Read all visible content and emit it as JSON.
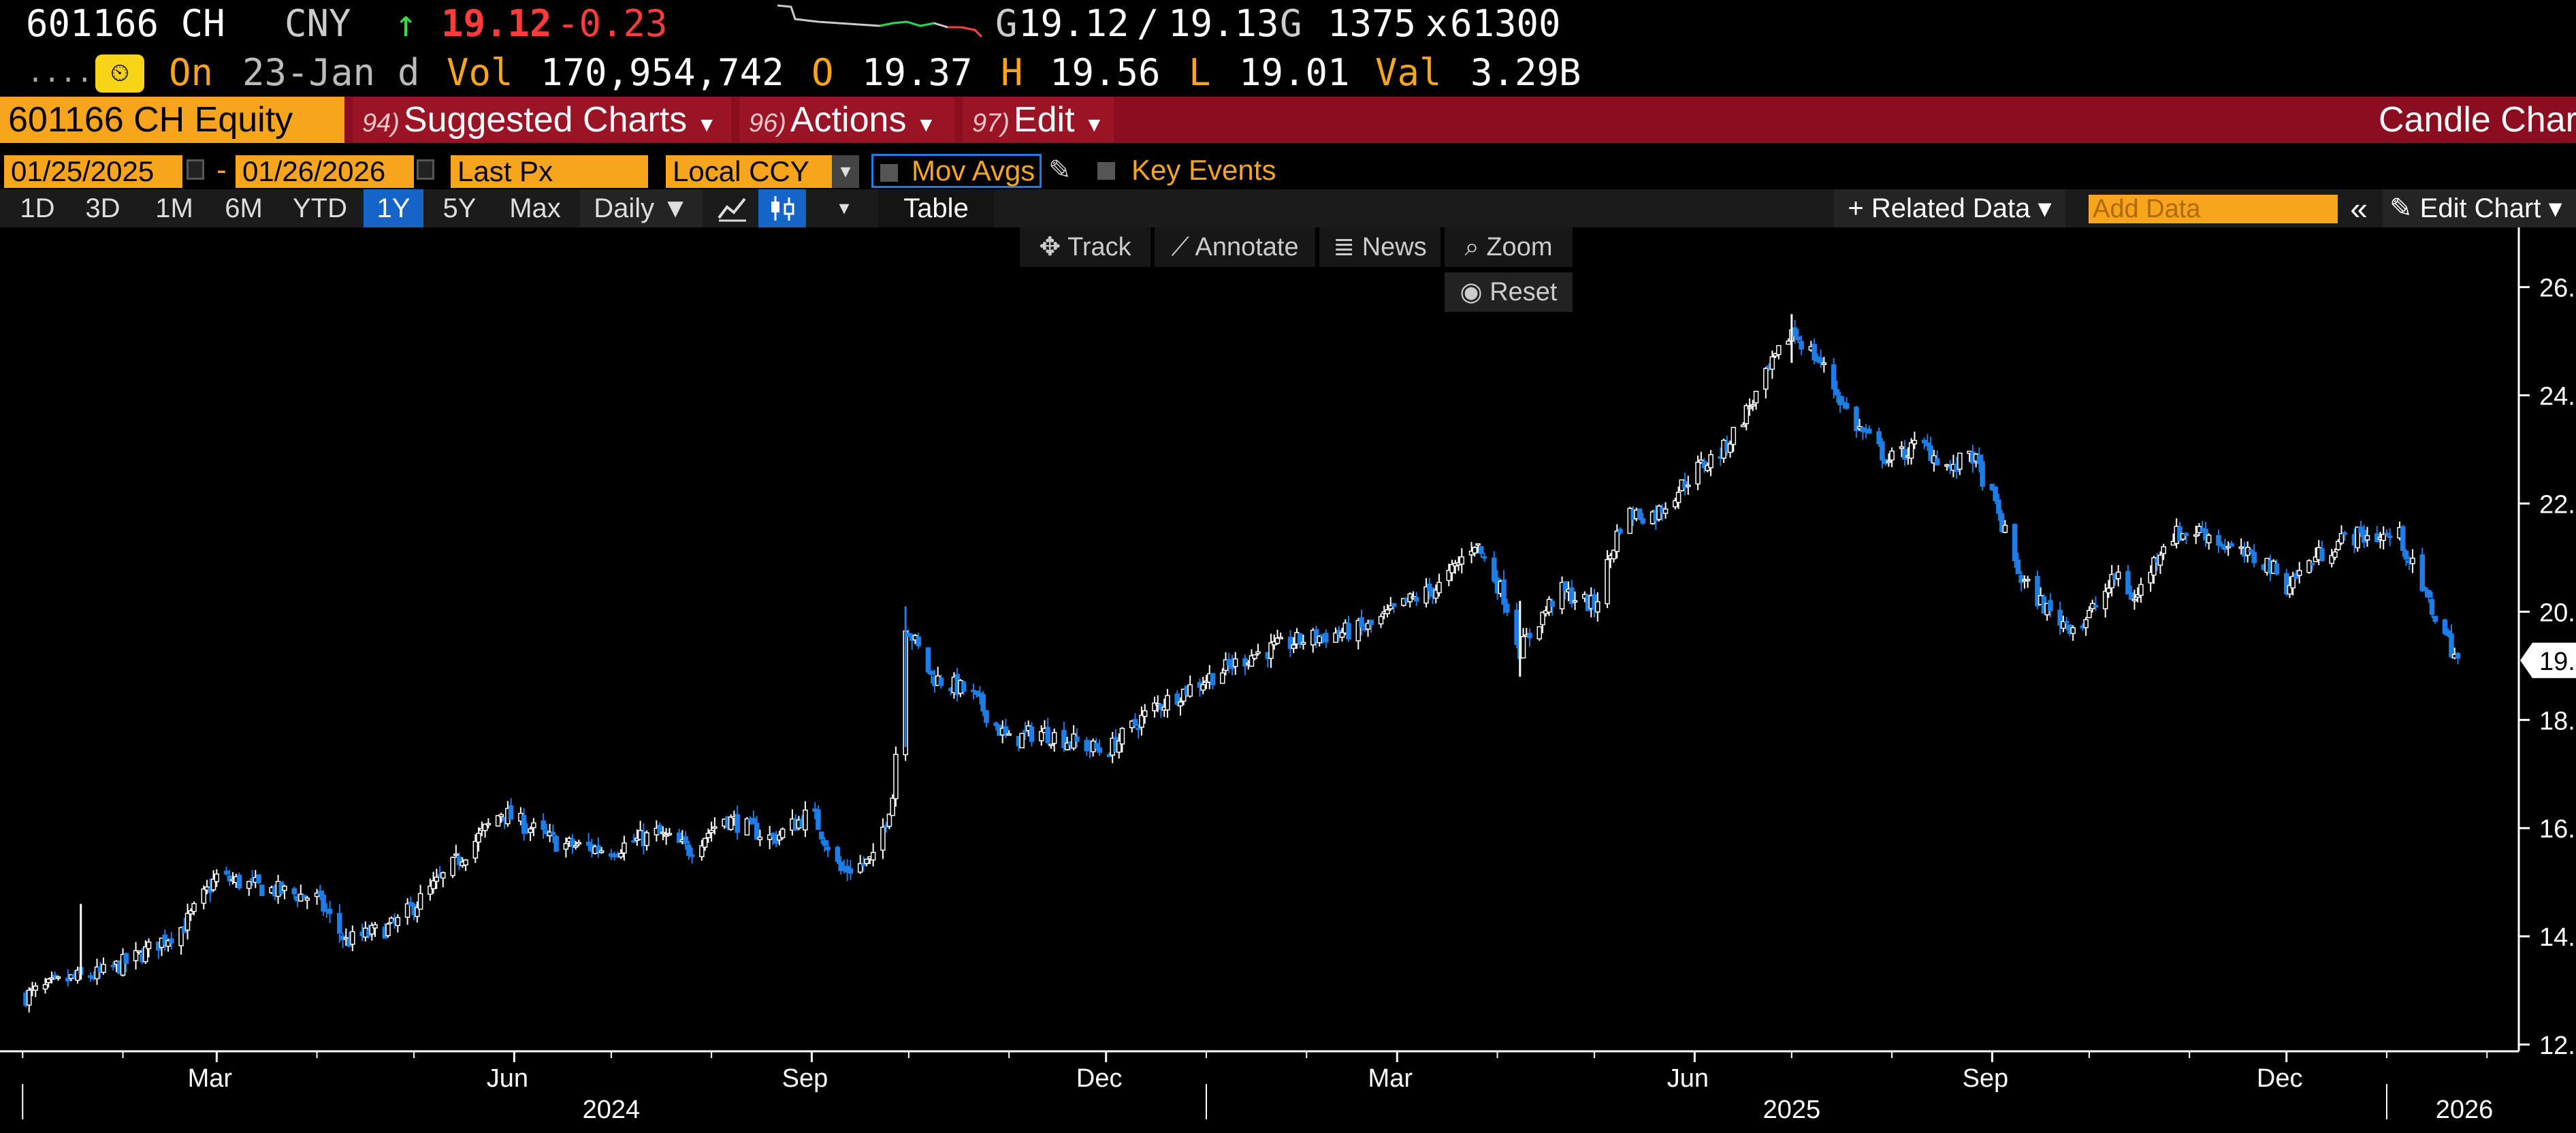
{
  "quote": {
    "ticker": "601166 CH",
    "currency": "CNY",
    "arrow": "↑",
    "last": "19.12",
    "change": "-0.23",
    "bid_prefix": "G",
    "bid": "19.12",
    "sep": "/",
    "ask": "19.13",
    "ask_suffix": "G",
    "bid_size": "1375",
    "x": "x",
    "ask_size": "61300"
  },
  "quote2": {
    "dots": ".....",
    "on": "On",
    "date": "23-Jan",
    "d": "d",
    "vol_label": "Vol",
    "vol": "170,954,742",
    "o_label": "O",
    "open": "19.37",
    "h_label": "H",
    "high": "19.56",
    "l_label": "L",
    "low": "19.01",
    "val_label": "Val",
    "value": "3.29B"
  },
  "menu": {
    "security": "601166 CH Equity",
    "suggested_num": "94)",
    "suggested": "Suggested Charts",
    "actions_num": "96)",
    "actions": "Actions",
    "edit_num": "97)",
    "edit": "Edit",
    "chart_type": "Candle Char"
  },
  "settings": {
    "start_date": "01/25/2025",
    "dash": "-",
    "end_date": "01/26/2026",
    "field": "Last Px",
    "currency": "Local CCY",
    "mov_avgs": "Mov Avgs",
    "key_events": "Key Events"
  },
  "toolbar": {
    "ranges": [
      "1D",
      "3D",
      "1M",
      "6M",
      "YTD",
      "1Y",
      "5Y",
      "Max"
    ],
    "active_range": "1Y",
    "periodicity": "Daily ▼",
    "table": "Table",
    "related_data": "+ Related Data ▾",
    "add_data_placeholder": "Add Data",
    "collapse": "«",
    "edit_chart": "Edit Chart ▾"
  },
  "chart_tools": {
    "track": "Track",
    "annotate": "Annotate",
    "news": "News",
    "zoom": "Zoom",
    "reset": "Reset"
  },
  "chart_data": {
    "type": "candlestick",
    "y_ticks": [
      "26.",
      "24.",
      "22.",
      "20.",
      "18.",
      "16.",
      "14.",
      "12."
    ],
    "y_tick_values": [
      26,
      24,
      22,
      20,
      18,
      16,
      14,
      12
    ],
    "last_price_label": "19.",
    "x_month_labels": [
      "Mar",
      "Jun",
      "Sep",
      "Dec",
      "Mar",
      "Jun",
      "Sep",
      "Dec"
    ],
    "x_year_labels": [
      "2024",
      "2025",
      "2026"
    ],
    "ylim": [
      11.9,
      26.6
    ],
    "close_path": [
      [
        "2024-01-02",
        12.9
      ],
      [
        "2024-01-15",
        13.2
      ],
      [
        "2024-01-25",
        13.3
      ],
      [
        "2024-02-05",
        13.6
      ],
      [
        "2024-02-20",
        14.2
      ],
      [
        "2024-03-01",
        15.1
      ],
      [
        "2024-03-15",
        14.9
      ],
      [
        "2024-04-01",
        14.7
      ],
      [
        "2024-04-10",
        13.9
      ],
      [
        "2024-04-25",
        14.2
      ],
      [
        "2024-05-10",
        15.1
      ],
      [
        "2024-05-28",
        16.3
      ],
      [
        "2024-06-15",
        15.7
      ],
      [
        "2024-07-01",
        15.6
      ],
      [
        "2024-07-15",
        15.9
      ],
      [
        "2024-07-25",
        15.6
      ],
      [
        "2024-08-05",
        16.2
      ],
      [
        "2024-08-20",
        15.8
      ],
      [
        "2024-09-01",
        16.3
      ],
      [
        "2024-09-10",
        15.2
      ],
      [
        "2024-09-20",
        15.4
      ],
      [
        "2024-09-26",
        16.6
      ],
      [
        "2024-09-30",
        19.8
      ],
      [
        "2024-10-08",
        18.8
      ],
      [
        "2024-10-20",
        18.5
      ],
      [
        "2024-11-01",
        17.6
      ],
      [
        "2024-11-10",
        17.8
      ],
      [
        "2024-12-01",
        17.4
      ],
      [
        "2024-12-15",
        18.2
      ],
      [
        "2024-12-30",
        18.7
      ],
      [
        "2025-01-15",
        19.2
      ],
      [
        "2025-02-01",
        19.5
      ],
      [
        "2025-02-20",
        19.7
      ],
      [
        "2025-03-05",
        20.2
      ],
      [
        "2025-03-15",
        20.5
      ],
      [
        "2025-03-25",
        21.3
      ],
      [
        "2025-04-03",
        20.3
      ],
      [
        "2025-04-08",
        19.3
      ],
      [
        "2025-04-20",
        20.4
      ],
      [
        "2025-05-01",
        20.1
      ],
      [
        "2025-05-10",
        21.8
      ],
      [
        "2025-05-20",
        21.8
      ],
      [
        "2025-06-01",
        22.6
      ],
      [
        "2025-06-10",
        23.0
      ],
      [
        "2025-06-20",
        24.0
      ],
      [
        "2025-07-01",
        25.2
      ],
      [
        "2025-07-10",
        24.6
      ],
      [
        "2025-07-20",
        23.5
      ],
      [
        "2025-07-31",
        22.8
      ],
      [
        "2025-08-10",
        23.1
      ],
      [
        "2025-08-20",
        22.6
      ],
      [
        "2025-08-25",
        23.0
      ],
      [
        "2025-09-01",
        22.1
      ],
      [
        "2025-09-10",
        20.6
      ],
      [
        "2025-09-20",
        19.9
      ],
      [
        "2025-09-28",
        19.7
      ],
      [
        "2025-10-10",
        20.7
      ],
      [
        "2025-10-15",
        20.2
      ],
      [
        "2025-10-25",
        21.4
      ],
      [
        "2025-11-05",
        21.5
      ],
      [
        "2025-11-15",
        21.1
      ],
      [
        "2025-11-25",
        20.9
      ],
      [
        "2025-12-01",
        20.5
      ],
      [
        "2025-12-10",
        21.0
      ],
      [
        "2025-12-20",
        21.4
      ],
      [
        "2026-01-05",
        21.4
      ],
      [
        "2026-01-12",
        20.4
      ],
      [
        "2026-01-23",
        19.1
      ]
    ],
    "colors": {
      "up": "#ffffff",
      "down": "#1e7ee8",
      "background": "#000000",
      "axis": "#ffffff"
    }
  }
}
